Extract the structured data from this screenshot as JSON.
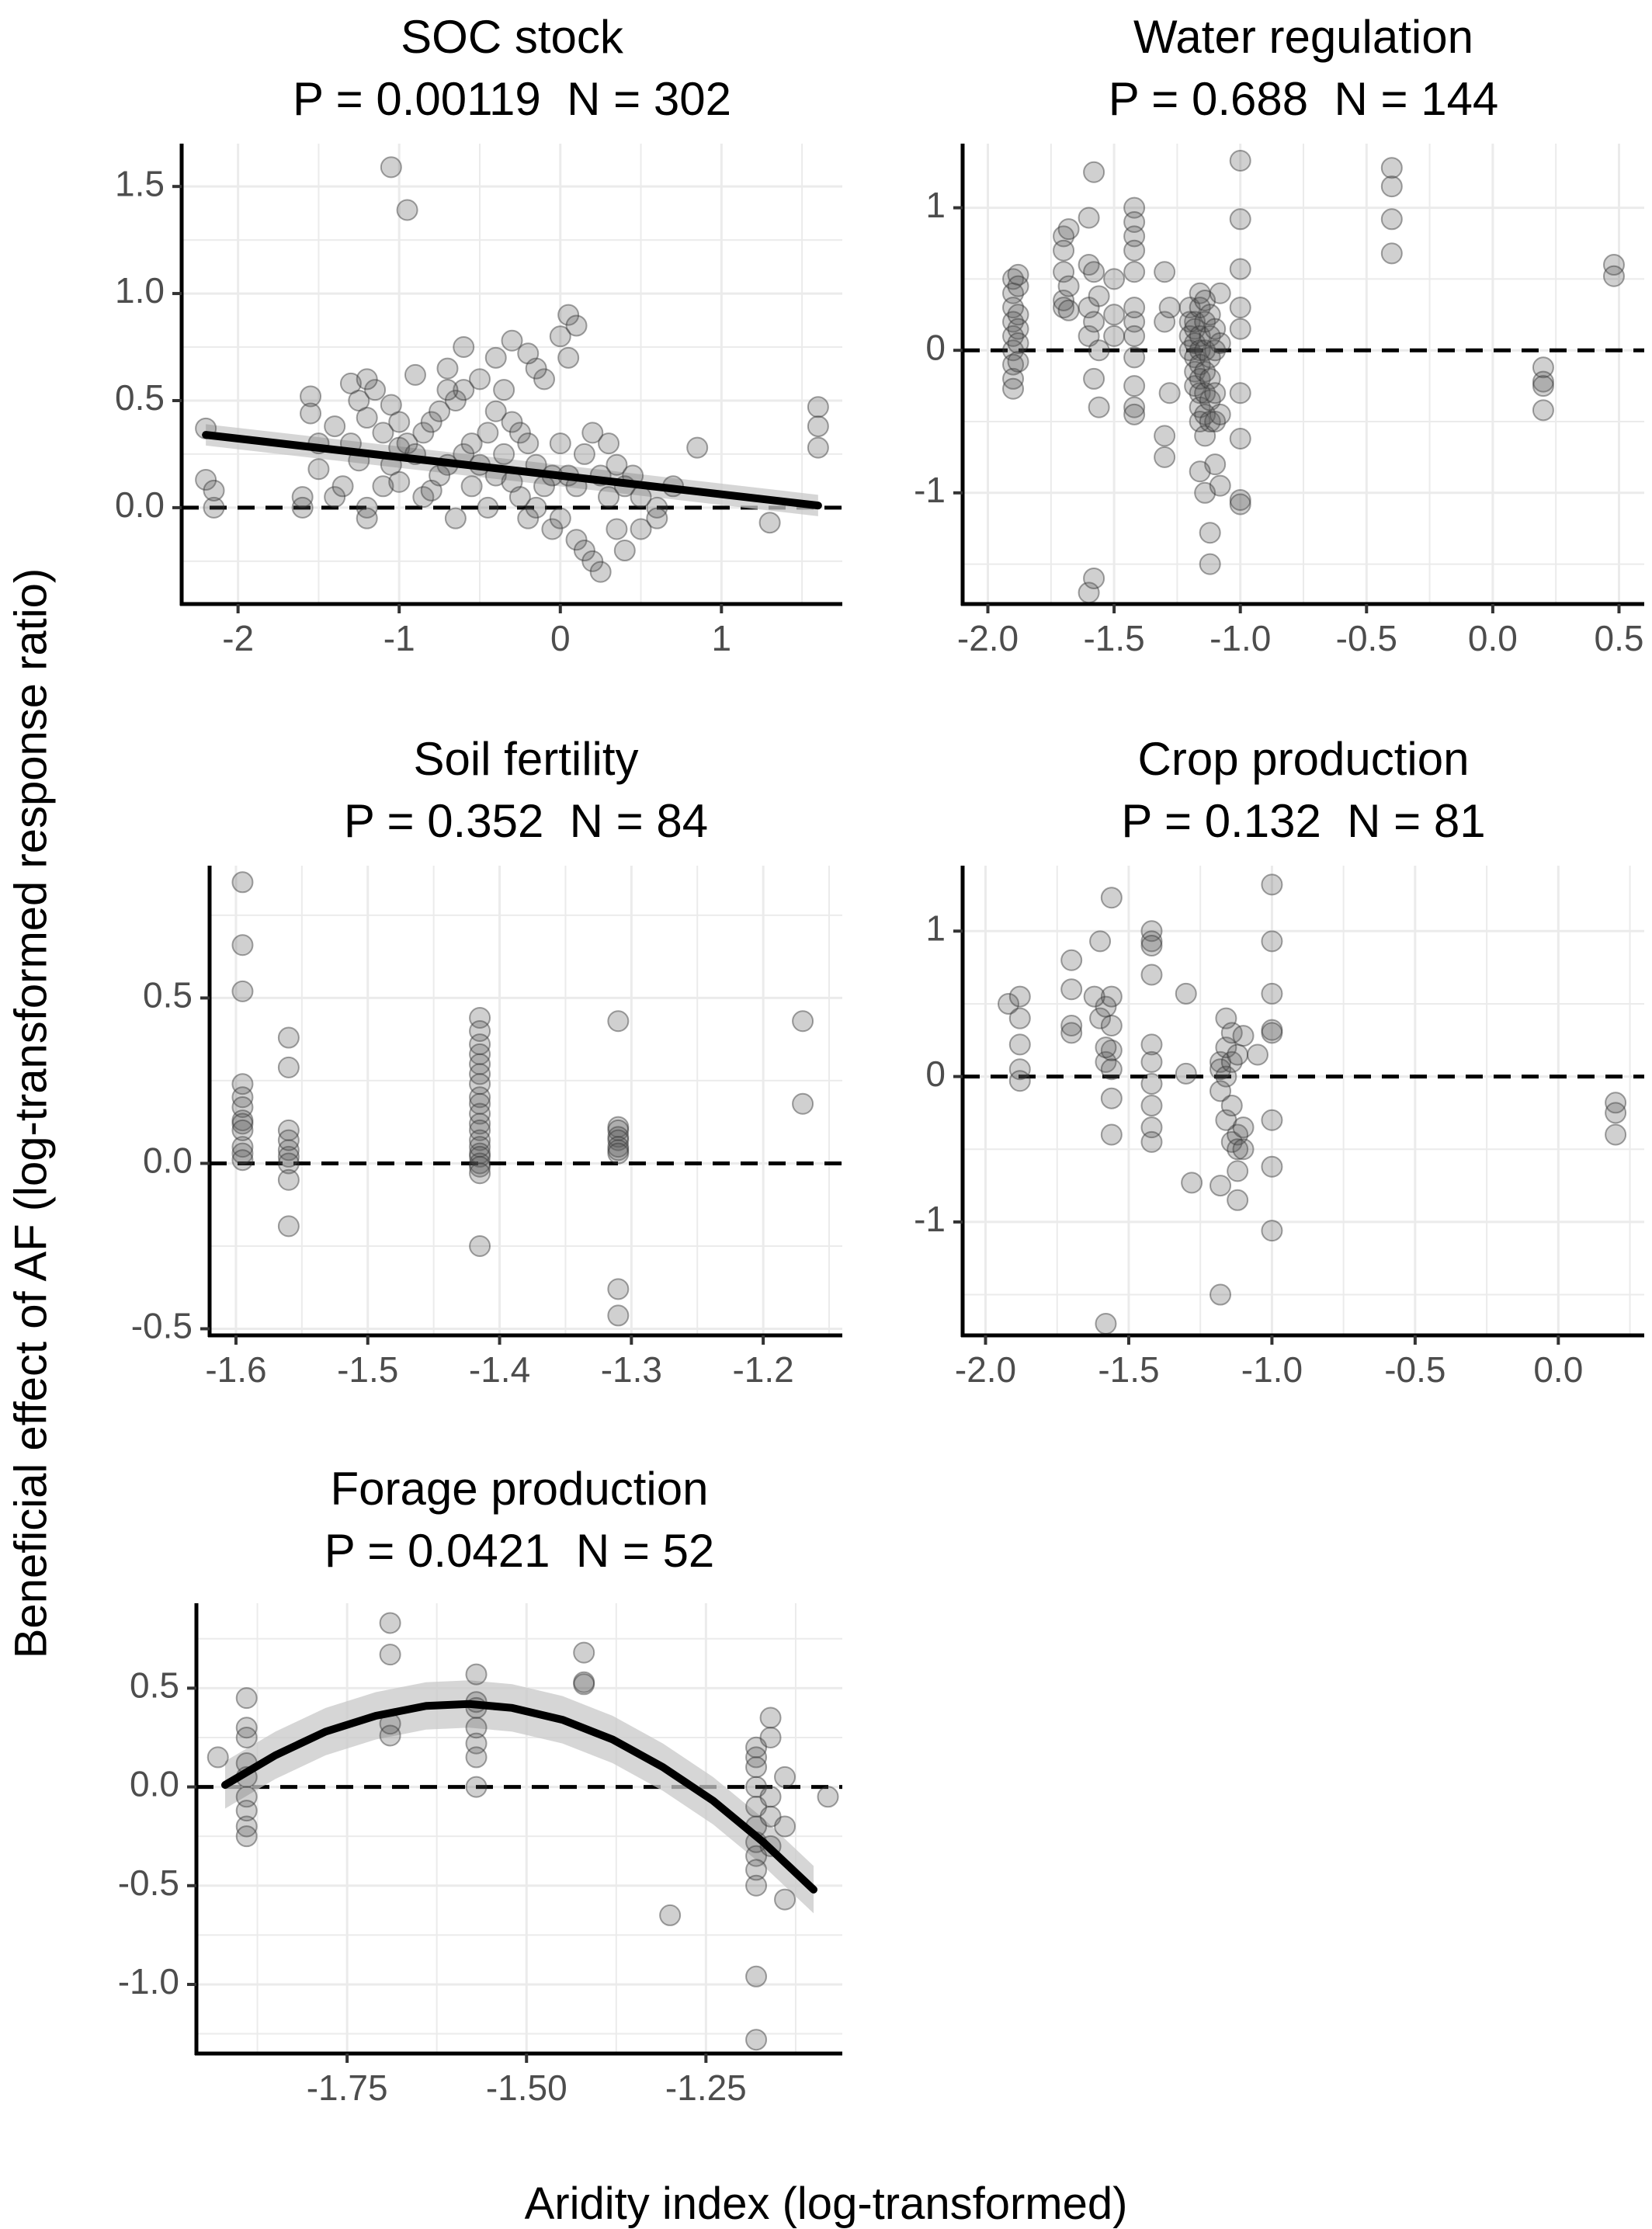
{
  "figure": {
    "ylabel": "Beneficial effect of AF (log-transformed response ratio)",
    "xlabel": "Aridity index (log-transformed)"
  },
  "chart_data": [
    {
      "type": "scatter",
      "title": "SOC stock",
      "subtitle": "P = 0.00119  N = 302",
      "xlim": [
        -2.35,
        1.75
      ],
      "ylim": [
        -0.45,
        1.7
      ],
      "xticks": [
        -2,
        -1,
        0,
        1
      ],
      "xtick_labels": [
        "-2",
        "-1",
        "0",
        "1"
      ],
      "yticks": [
        0,
        0.5,
        1.0,
        1.5
      ],
      "ytick_labels": [
        "0.0",
        "0.5",
        "1.0",
        "1.5"
      ],
      "reference_line_y": 0,
      "fit": {
        "kind": "linear",
        "x": [
          -2.2,
          -1.3,
          -0.4,
          0.5,
          1.6
        ],
        "y": [
          0.34,
          0.262,
          0.184,
          0.106,
          0.01
        ],
        "band": 0.05
      },
      "points": {
        "x": [
          -2.2,
          -2.2,
          -2.15,
          -2.15,
          -1.6,
          -1.6,
          -1.55,
          -1.55,
          -1.5,
          -1.5,
          -1.4,
          -1.4,
          -1.35,
          -1.3,
          -1.3,
          -1.25,
          -1.25,
          -1.2,
          -1.2,
          -1.2,
          -1.15,
          -1.1,
          -1.1,
          -1.05,
          -1.05,
          -1.0,
          -1.0,
          -1.0,
          -0.95,
          -0.9,
          -0.9,
          -0.85,
          -0.85,
          -0.8,
          -0.8,
          -0.75,
          -0.75,
          -0.7,
          -0.7,
          -0.65,
          -0.65,
          -0.6,
          -0.6,
          -0.55,
          -0.55,
          -0.5,
          -0.5,
          -0.45,
          -0.45,
          -0.4,
          -0.4,
          -0.35,
          -0.35,
          -0.3,
          -0.3,
          -0.25,
          -0.25,
          -0.2,
          -0.2,
          -0.15,
          -0.15,
          -0.1,
          -0.1,
          -0.05,
          -0.05,
          0.0,
          0.0,
          0.0,
          0.05,
          0.05,
          0.1,
          0.1,
          0.15,
          0.15,
          0.2,
          0.2,
          0.25,
          0.25,
          0.3,
          0.3,
          0.35,
          0.35,
          0.4,
          0.4,
          0.45,
          0.5,
          0.5,
          0.6,
          0.6,
          0.7,
          0.85,
          1.3,
          1.6,
          1.6,
          1.6,
          -1.05,
          -0.95,
          -0.6,
          -0.4,
          -0.15,
          0.05,
          0.1,
          -0.3,
          -0.7,
          -1.2,
          -0.2
        ],
        "y": [
          0.37,
          0.13,
          0.0,
          0.08,
          0.05,
          0.0,
          0.52,
          0.44,
          0.3,
          0.18,
          0.38,
          0.05,
          0.1,
          0.58,
          0.3,
          0.5,
          0.22,
          0.42,
          0.0,
          -0.05,
          0.55,
          0.35,
          0.1,
          0.48,
          0.2,
          0.4,
          0.12,
          0.28,
          0.3,
          0.62,
          0.25,
          0.35,
          0.05,
          0.4,
          0.08,
          0.45,
          0.15,
          0.65,
          0.2,
          0.5,
          -0.05,
          0.55,
          0.25,
          0.3,
          0.1,
          0.6,
          0.2,
          0.35,
          0.0,
          0.45,
          0.15,
          0.55,
          0.25,
          0.4,
          0.12,
          0.35,
          0.05,
          0.3,
          -0.05,
          0.2,
          0.0,
          0.6,
          0.1,
          0.15,
          -0.1,
          0.8,
          0.3,
          -0.05,
          0.7,
          0.15,
          0.1,
          -0.15,
          0.25,
          -0.2,
          0.35,
          -0.25,
          0.15,
          -0.3,
          0.3,
          0.05,
          0.2,
          -0.1,
          0.1,
          -0.2,
          0.15,
          0.05,
          -0.1,
          0.0,
          -0.05,
          0.1,
          0.28,
          -0.07,
          0.47,
          0.38,
          0.28,
          1.59,
          1.39,
          0.75,
          0.7,
          0.65,
          0.9,
          0.85,
          0.78,
          0.55,
          0.6,
          0.72
        ]
      }
    },
    {
      "type": "scatter",
      "title": "Water regulation",
      "subtitle": "P = 0.688  N = 144",
      "xlim": [
        -2.1,
        0.6
      ],
      "ylim": [
        -1.78,
        1.45
      ],
      "xticks": [
        -2.0,
        -1.5,
        -1.0,
        -0.5,
        0.0,
        0.5
      ],
      "xtick_labels": [
        "-2.0",
        "-1.5",
        "-1.0",
        "-0.5",
        "0.0",
        "0.5"
      ],
      "yticks": [
        -1,
        0,
        1
      ],
      "ytick_labels": [
        "-1",
        "0",
        "1"
      ],
      "reference_line_y": 0,
      "points": {
        "x": [
          -1.9,
          -1.9,
          -1.9,
          -1.9,
          -1.9,
          -1.9,
          -1.9,
          -1.9,
          -1.9,
          -1.88,
          -1.88,
          -1.88,
          -1.88,
          -1.88,
          -1.88,
          -1.7,
          -1.7,
          -1.7,
          -1.7,
          -1.7,
          -1.68,
          -1.68,
          -1.68,
          -1.6,
          -1.6,
          -1.6,
          -1.6,
          -1.58,
          -1.58,
          -1.58,
          -1.58,
          -1.56,
          -1.56,
          -1.56,
          -1.5,
          -1.5,
          -1.5,
          -1.42,
          -1.42,
          -1.42,
          -1.42,
          -1.42,
          -1.42,
          -1.42,
          -1.42,
          -1.42,
          -1.42,
          -1.42,
          -1.3,
          -1.3,
          -1.3,
          -1.3,
          -1.28,
          -1.28,
          -1.2,
          -1.2,
          -1.2,
          -1.2,
          -1.18,
          -1.18,
          -1.18,
          -1.18,
          -1.18,
          -1.18,
          -1.16,
          -1.16,
          -1.16,
          -1.16,
          -1.16,
          -1.16,
          -1.16,
          -1.16,
          -1.16,
          -1.14,
          -1.14,
          -1.14,
          -1.14,
          -1.14,
          -1.14,
          -1.14,
          -1.14,
          -1.12,
          -1.12,
          -1.12,
          -1.12,
          -1.12,
          -1.12,
          -1.12,
          -1.12,
          -1.1,
          -1.1,
          -1.1,
          -1.1,
          -1.1,
          -1.08,
          -1.08,
          -1.08,
          -1.08,
          -1.0,
          -1.0,
          -1.0,
          -1.0,
          -1.0,
          -1.0,
          -1.0,
          -1.0,
          -1.0,
          -0.4,
          -0.4,
          -0.4,
          -0.4,
          0.2,
          0.2,
          0.2,
          0.2,
          0.48,
          0.48,
          -1.6,
          -1.58,
          -1.16,
          -1.42
        ],
        "y": [
          0.5,
          0.4,
          0.3,
          0.2,
          0.1,
          0.0,
          -0.1,
          -0.2,
          -0.27,
          0.53,
          0.45,
          0.25,
          0.15,
          0.05,
          -0.08,
          0.8,
          0.7,
          0.55,
          0.35,
          0.3,
          0.85,
          0.45,
          0.28,
          0.93,
          0.6,
          0.3,
          0.1,
          1.25,
          0.55,
          0.2,
          -0.2,
          0.38,
          0.0,
          -0.4,
          0.5,
          0.25,
          0.1,
          1.0,
          0.9,
          0.8,
          0.7,
          0.55,
          0.2,
          0.1,
          -0.05,
          -0.25,
          -0.4,
          -0.45,
          0.55,
          0.2,
          -0.6,
          -0.75,
          0.3,
          -0.3,
          0.3,
          0.2,
          0.1,
          0.0,
          0.2,
          0.15,
          0.05,
          -0.05,
          -0.15,
          -0.25,
          0.4,
          0.3,
          0.1,
          0.0,
          -0.1,
          -0.2,
          -0.3,
          -0.4,
          -0.5,
          0.35,
          0.2,
          0.0,
          -0.15,
          -0.3,
          -0.45,
          -0.6,
          -1.0,
          0.25,
          0.1,
          -0.05,
          -0.2,
          -0.35,
          -0.5,
          -1.28,
          -1.5,
          0.15,
          0.0,
          -0.3,
          -0.5,
          -0.8,
          0.4,
          0.05,
          -0.45,
          -0.95,
          1.33,
          0.92,
          0.57,
          0.3,
          0.15,
          -0.3,
          -0.62,
          -1.05,
          -1.08,
          1.28,
          1.15,
          0.92,
          0.68,
          -0.12,
          -0.22,
          -0.25,
          -0.42,
          0.6,
          0.52,
          -1.7,
          -1.6,
          -0.85,
          0.3
        ]
      }
    },
    {
      "type": "scatter",
      "title": "Soil fertility",
      "subtitle": "P = 0.352  N = 84",
      "xlim": [
        -1.62,
        -1.14
      ],
      "ylim": [
        -0.52,
        0.9
      ],
      "xticks": [
        -1.6,
        -1.5,
        -1.4,
        -1.3,
        -1.2
      ],
      "xtick_labels": [
        "-1.6",
        "-1.5",
        "-1.4",
        "-1.3",
        "-1.2"
      ],
      "yticks": [
        -0.5,
        0.0,
        0.5
      ],
      "ytick_labels": [
        "-0.5",
        "0.0",
        "0.5"
      ],
      "reference_line_y": 0,
      "points": {
        "x": [
          -1.595,
          -1.595,
          -1.595,
          -1.595,
          -1.595,
          -1.595,
          -1.595,
          -1.595,
          -1.595,
          -1.595,
          -1.595,
          -1.595,
          -1.56,
          -1.56,
          -1.56,
          -1.56,
          -1.56,
          -1.56,
          -1.56,
          -1.56,
          -1.56,
          -1.415,
          -1.415,
          -1.415,
          -1.415,
          -1.415,
          -1.415,
          -1.415,
          -1.415,
          -1.415,
          -1.415,
          -1.415,
          -1.415,
          -1.415,
          -1.415,
          -1.415,
          -1.415,
          -1.415,
          -1.415,
          -1.415,
          -1.415,
          -1.31,
          -1.31,
          -1.31,
          -1.31,
          -1.31,
          -1.31,
          -1.31,
          -1.31,
          -1.31,
          -1.31,
          -1.17,
          -1.17
        ],
        "y": [
          0.85,
          0.66,
          0.52,
          0.24,
          0.2,
          0.17,
          0.13,
          0.12,
          0.05,
          0.03,
          0.01,
          0.1,
          0.38,
          0.29,
          0.1,
          0.04,
          0.02,
          0.0,
          -0.05,
          -0.19,
          0.07,
          0.44,
          0.4,
          0.36,
          0.33,
          0.3,
          0.27,
          0.24,
          0.2,
          0.18,
          0.15,
          0.12,
          0.1,
          0.07,
          0.05,
          0.03,
          0.02,
          0.0,
          -0.01,
          -0.03,
          -0.25,
          0.43,
          0.11,
          0.1,
          0.08,
          0.07,
          0.05,
          0.04,
          0.03,
          -0.38,
          -0.46,
          0.43,
          0.18
        ]
      }
    },
    {
      "type": "scatter",
      "title": "Crop production",
      "subtitle": "P = 0.132  N = 81",
      "xlim": [
        -2.08,
        0.3
      ],
      "ylim": [
        -1.78,
        1.45
      ],
      "xticks": [
        -2.0,
        -1.5,
        -1.0,
        -0.5,
        0.0
      ],
      "xtick_labels": [
        "-2.0",
        "-1.5",
        "-1.0",
        "-0.5",
        "0.0"
      ],
      "yticks": [
        -1,
        0,
        1
      ],
      "ytick_labels": [
        "-1",
        "0",
        "1"
      ],
      "reference_line_y": 0,
      "points": {
        "x": [
          -1.92,
          -1.88,
          -1.88,
          -1.88,
          -1.88,
          -1.88,
          -1.7,
          -1.7,
          -1.7,
          -1.7,
          -1.6,
          -1.6,
          -1.58,
          -1.58,
          -1.56,
          -1.56,
          -1.56,
          -1.56,
          -1.56,
          -1.56,
          -1.56,
          -1.42,
          -1.42,
          -1.42,
          -1.42,
          -1.42,
          -1.42,
          -1.42,
          -1.42,
          -1.42,
          -1.42,
          -1.3,
          -1.3,
          -1.28,
          -1.18,
          -1.18,
          -1.18,
          -1.18,
          -1.16,
          -1.16,
          -1.16,
          -1.16,
          -1.14,
          -1.14,
          -1.14,
          -1.14,
          -1.12,
          -1.12,
          -1.12,
          -1.12,
          -1.12,
          -1.1,
          -1.1,
          -1.1,
          -1.0,
          -1.0,
          -1.0,
          -1.0,
          -1.0,
          -1.0,
          -1.0,
          -1.0,
          0.2,
          0.2,
          0.2,
          -1.58,
          -1.18,
          -1.05,
          -1.58,
          -1.62
        ],
        "y": [
          0.5,
          0.55,
          0.4,
          0.22,
          0.05,
          -0.03,
          0.8,
          0.6,
          0.35,
          0.3,
          0.93,
          0.4,
          0.48,
          0.1,
          1.23,
          0.55,
          0.35,
          0.18,
          0.05,
          -0.15,
          -0.4,
          1.0,
          0.93,
          0.9,
          0.7,
          0.22,
          0.1,
          -0.05,
          -0.2,
          -0.35,
          -0.45,
          0.57,
          0.02,
          -0.73,
          0.1,
          0.05,
          -0.1,
          -1.5,
          0.4,
          0.2,
          0.0,
          -0.3,
          0.3,
          0.1,
          -0.2,
          -0.45,
          0.15,
          -0.4,
          -0.5,
          -0.65,
          -0.85,
          0.28,
          -0.35,
          -0.5,
          1.32,
          0.93,
          0.57,
          0.32,
          0.3,
          -0.3,
          -0.62,
          -1.06,
          -0.18,
          -0.25,
          -0.4,
          -1.7,
          -0.75,
          0.15,
          0.2,
          0.55
        ]
      }
    },
    {
      "type": "scatter",
      "title": "Forage production",
      "subtitle": "P = 0.0421  N = 52",
      "xlim": [
        -1.96,
        -1.06
      ],
      "ylim": [
        -1.35,
        0.93
      ],
      "xticks": [
        -1.75,
        -1.5,
        -1.25
      ],
      "xtick_labels": [
        "-1.75",
        "-1.50",
        "-1.25"
      ],
      "yticks": [
        -1.0,
        -0.5,
        0.0,
        0.5
      ],
      "ytick_labels": [
        "-1.0",
        "-0.5",
        "0.0",
        "0.5"
      ],
      "reference_line_y": 0,
      "fit": {
        "kind": "quadratic",
        "x": [
          -1.92,
          -1.85,
          -1.78,
          -1.71,
          -1.64,
          -1.58,
          -1.52,
          -1.45,
          -1.38,
          -1.31,
          -1.24,
          -1.17,
          -1.1
        ],
        "y": [
          0.01,
          0.16,
          0.28,
          0.36,
          0.41,
          0.42,
          0.4,
          0.34,
          0.24,
          0.1,
          -0.07,
          -0.28,
          -0.52
        ],
        "band": 0.12
      },
      "points": {
        "x": [
          -1.93,
          -1.89,
          -1.89,
          -1.89,
          -1.89,
          -1.89,
          -1.89,
          -1.89,
          -1.89,
          -1.89,
          -1.69,
          -1.69,
          -1.69,
          -1.69,
          -1.57,
          -1.57,
          -1.57,
          -1.57,
          -1.57,
          -1.57,
          -1.57,
          -1.42,
          -1.42,
          -1.42,
          -1.3,
          -1.18,
          -1.18,
          -1.18,
          -1.18,
          -1.18,
          -1.18,
          -1.18,
          -1.18,
          -1.18,
          -1.18,
          -1.18,
          -1.18,
          -1.16,
          -1.16,
          -1.16,
          -1.16,
          -1.16,
          -1.14,
          -1.14,
          -1.14,
          -1.08
        ],
        "y": [
          0.15,
          0.45,
          0.3,
          0.25,
          0.12,
          0.05,
          -0.05,
          -0.12,
          -0.2,
          -0.25,
          0.83,
          0.67,
          0.32,
          0.26,
          0.57,
          0.43,
          0.3,
          0.22,
          0.15,
          0.0,
          0.4,
          0.68,
          0.53,
          0.52,
          -0.65,
          0.2,
          0.15,
          0.0,
          -0.1,
          -0.2,
          -0.28,
          -0.35,
          -0.42,
          -0.5,
          -0.96,
          -1.28,
          0.1,
          0.35,
          0.25,
          -0.05,
          -0.15,
          -0.3,
          0.05,
          -0.2,
          -0.57,
          -0.05
        ]
      }
    }
  ]
}
